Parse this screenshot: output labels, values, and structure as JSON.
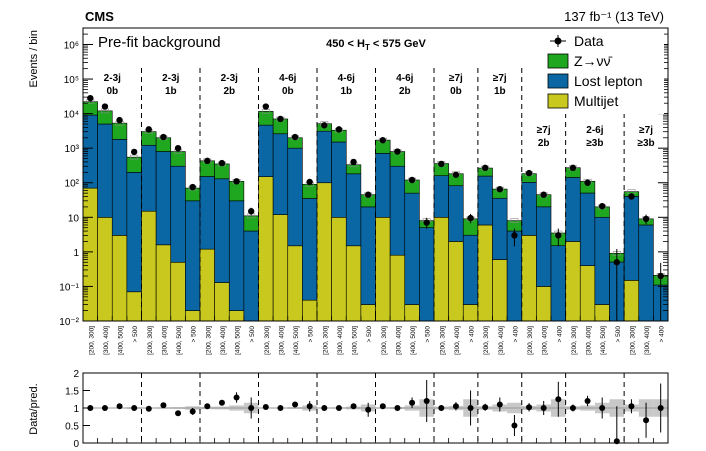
{
  "chart_data": {
    "type": "bar",
    "stacked": true,
    "title": "450 < H_T < 575 GeV",
    "experiment": "CMS",
    "luminosity": "137 fb⁻¹ (13 TeV)",
    "subtitle": "Pre-fit background",
    "ylabel": "Events / bin",
    "ratio_ylabel": "Data/pred.",
    "yscale": "log",
    "ylim": [
      0.01,
      3000000
    ],
    "ratio_ylim": [
      0,
      2
    ],
    "y_ticks": [
      {
        "v": 0.01,
        "label": "10⁻²"
      },
      {
        "v": 0.1,
        "label": "10⁻¹"
      },
      {
        "v": 1,
        "label": "1"
      },
      {
        "v": 10,
        "label": "10"
      },
      {
        "v": 100,
        "label": "10²"
      },
      {
        "v": 1000,
        "label": "10³"
      },
      {
        "v": 10000,
        "label": "10⁴"
      },
      {
        "v": 100000,
        "label": "10⁵"
      },
      {
        "v": 1000000,
        "label": "10⁶"
      }
    ],
    "ratio_ticks": [
      "0",
      "0.5",
      "1",
      "1.5",
      "2"
    ],
    "legend": [
      {
        "name": "Data",
        "kind": "marker"
      },
      {
        "name": "Z→νν̄",
        "kind": "box",
        "color": "#1fa81f"
      },
      {
        "name": "Lost lepton",
        "kind": "box",
        "color": "#0b67a3"
      },
      {
        "name": "Multijet",
        "kind": "box",
        "color": "#c8c81e"
      }
    ],
    "colors": {
      "znunu": "#1fa81f",
      "lostlepton": "#0b67a3",
      "multijet": "#c8c81e",
      "band": "#c8c8c8"
    },
    "regions": [
      {
        "nj": "2-3j",
        "nb": "0b",
        "bins": [
          "[200, 300]",
          "[300, 400]",
          "[400, 500]",
          "> 500"
        ]
      },
      {
        "nj": "2-3j",
        "nb": "1b",
        "bins": [
          "[200, 300]",
          "[300, 400]",
          "[400, 500]",
          "> 500"
        ]
      },
      {
        "nj": "2-3j",
        "nb": "2b",
        "bins": [
          "[200, 300]",
          "[300, 400]",
          "[400, 500]",
          "> 500"
        ]
      },
      {
        "nj": "4-6j",
        "nb": "0b",
        "bins": [
          "[200, 300]",
          "[300, 400]",
          "[400, 500]",
          "> 500"
        ]
      },
      {
        "nj": "4-6j",
        "nb": "1b",
        "bins": [
          "[200, 300]",
          "[300, 400]",
          "[400, 500]",
          "> 500"
        ]
      },
      {
        "nj": "4-6j",
        "nb": "2b",
        "bins": [
          "[200, 300]",
          "[300, 400]",
          "[400, 500]",
          "> 500"
        ]
      },
      {
        "nj": "≥7j",
        "nb": "0b",
        "bins": [
          "[200, 300]",
          "[300, 400]",
          "> 400"
        ]
      },
      {
        "nj": "≥7j",
        "nb": "1b",
        "bins": [
          "[200, 300]",
          "[300, 400]",
          "> 400"
        ]
      },
      {
        "nj": "≥7j",
        "nb": "2b",
        "bins": [
          "[200, 300]",
          "[300, 400]",
          "> 400"
        ]
      },
      {
        "nj": "2-6j",
        "nb": "≥3b",
        "bins": [
          "[200, 300]",
          "[300, 400]",
          "[400, 500]",
          "> 500"
        ]
      },
      {
        "nj": "≥7j",
        "nb": "≥3b",
        "bins": [
          "[200, 300]",
          "[300, 400]",
          "> 400"
        ]
      }
    ],
    "series": [
      {
        "name": "Multijet",
        "values": [
          70,
          10,
          3,
          0.07,
          15,
          1.6,
          0.5,
          0.02,
          1.2,
          0.13,
          0.02,
          0.01,
          150,
          12,
          1.5,
          0.04,
          100,
          10,
          1.5,
          0.03,
          10,
          0.8,
          0.03,
          0.01,
          10,
          2,
          0.03,
          6,
          0.6,
          0.01,
          3,
          0.1,
          0.01,
          2,
          0.4,
          0.03,
          0.01,
          0.15,
          0.01,
          0.01
        ]
      },
      {
        "name": "Lost lepton",
        "values": [
          9000,
          5000,
          1800,
          200,
          1200,
          800,
          300,
          30,
          150,
          130,
          30,
          4,
          4500,
          2600,
          1000,
          35,
          3000,
          1500,
          180,
          20,
          700,
          300,
          50,
          5,
          150,
          80,
          3,
          150,
          35,
          4,
          100,
          20,
          1.5,
          140,
          50,
          10,
          0.5,
          40,
          6,
          0.1
        ]
      },
      {
        "name": "Z→νν̄",
        "values": [
          13000,
          7000,
          3500,
          350,
          1800,
          1200,
          500,
          40,
          280,
          220,
          80,
          7,
          7000,
          4400,
          1000,
          55,
          2000,
          1800,
          150,
          25,
          1000,
          500,
          70,
          3,
          200,
          100,
          6,
          110,
          30,
          4,
          80,
          25,
          2,
          130,
          60,
          10,
          0.4,
          15,
          3,
          0.1
        ]
      }
    ],
    "data": [
      28000,
      16000,
      6500,
      780,
      3500,
      2100,
      1000,
      75,
      430,
      370,
      110,
      15,
      16000,
      7000,
      2100,
      105,
      4600,
      3500,
      400,
      45,
      1700,
      800,
      120,
      7,
      350,
      170,
      9.5,
      270,
      65,
      3.0,
      190,
      45,
      3.0,
      270,
      100,
      21,
      0.5,
      40,
      9,
      0.2
    ],
    "ratio": [
      1.0,
      1.0,
      1.05,
      1.0,
      0.98,
      1.08,
      0.85,
      0.9,
      1.05,
      1.15,
      1.3,
      1.0,
      1.03,
      1.0,
      1.1,
      1.05,
      1.0,
      1.0,
      1.05,
      0.95,
      1.05,
      1.0,
      1.15,
      1.2,
      1.0,
      1.05,
      1.0,
      1.02,
      1.1,
      0.5,
      1.02,
      1.0,
      1.25,
      1.0,
      1.2,
      1.0,
      0.05,
      1.05,
      0.65,
      1.0
    ],
    "ratio_err": [
      0.02,
      0.02,
      0.03,
      0.05,
      0.03,
      0.04,
      0.05,
      0.1,
      0.07,
      0.08,
      0.15,
      0.3,
      0.02,
      0.03,
      0.05,
      0.15,
      0.03,
      0.04,
      0.08,
      0.2,
      0.04,
      0.06,
      0.15,
      0.6,
      0.08,
      0.12,
      0.5,
      0.1,
      0.2,
      0.3,
      0.12,
      0.2,
      0.5,
      0.1,
      0.15,
      0.3,
      1.0,
      0.2,
      0.5,
      0.7
    ]
  }
}
